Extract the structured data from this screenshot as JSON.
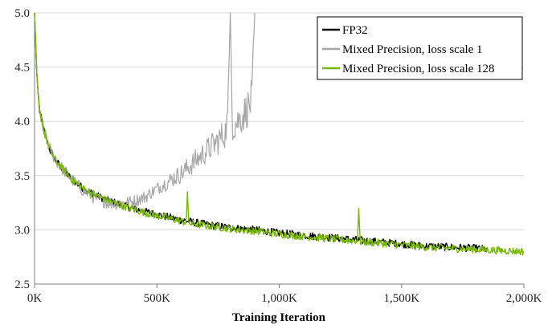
{
  "chart_data": {
    "type": "line",
    "title": "",
    "xlabel": "Training Iteration",
    "ylabel": "",
    "xlim": [
      0,
      2000000
    ],
    "ylim": [
      2.5,
      5.0
    ],
    "x_ticks": [
      0,
      500000,
      1000000,
      1500000,
      2000000
    ],
    "x_tick_labels": [
      "0K",
      "500K",
      "1,000K",
      "1,500K",
      "2,000K"
    ],
    "y_ticks": [
      2.5,
      3.0,
      3.5,
      4.0,
      4.5,
      5.0
    ],
    "y_tick_labels": [
      "2.5",
      "3.0",
      "3.5",
      "4.0",
      "4.5",
      "5.0"
    ],
    "grid": "horizontal",
    "legend_position": "top-right",
    "series": [
      {
        "name": "FP32",
        "color": "#000000",
        "x": [
          0,
          10000,
          20000,
          40000,
          60000,
          80000,
          100000,
          150000,
          200000,
          250000,
          300000,
          400000,
          500000,
          600000,
          700000,
          800000,
          900000,
          1000000,
          1100000,
          1200000,
          1300000,
          1400000,
          1500000,
          1600000,
          1700000,
          1800000,
          1850000
        ],
        "y": [
          5.0,
          4.4,
          4.1,
          3.9,
          3.75,
          3.66,
          3.6,
          3.47,
          3.38,
          3.32,
          3.27,
          3.2,
          3.14,
          3.09,
          3.05,
          3.02,
          3.0,
          2.97,
          2.95,
          2.93,
          2.91,
          2.89,
          2.87,
          2.85,
          2.84,
          2.83,
          2.82
        ]
      },
      {
        "name": "Mixed Precision, loss scale 1",
        "color": "#a6a6a6",
        "x": [
          0,
          10000,
          20000,
          40000,
          60000,
          80000,
          100000,
          150000,
          200000,
          250000,
          300000,
          350000,
          400000,
          450000,
          500000,
          550000,
          600000,
          650000,
          700000,
          750000,
          780000,
          790000,
          800000,
          810000,
          850000,
          880000,
          890000,
          900000
        ],
        "y": [
          5.0,
          4.4,
          4.1,
          3.9,
          3.76,
          3.67,
          3.6,
          3.47,
          3.36,
          3.29,
          3.25,
          3.24,
          3.26,
          3.3,
          3.38,
          3.45,
          3.52,
          3.62,
          3.72,
          3.82,
          3.9,
          4.05,
          5.0,
          3.95,
          4.05,
          4.15,
          4.25,
          5.0
        ]
      },
      {
        "name": "Mixed Precision, loss scale 128",
        "color": "#76b900",
        "x": [
          0,
          10000,
          20000,
          40000,
          60000,
          80000,
          100000,
          150000,
          200000,
          250000,
          300000,
          400000,
          500000,
          600000,
          620000,
          625000,
          630000,
          700000,
          800000,
          900000,
          1000000,
          1100000,
          1200000,
          1300000,
          1320000,
          1325000,
          1330000,
          1400000,
          1500000,
          1600000,
          1700000,
          1800000,
          1900000,
          2000000
        ],
        "y": [
          5.0,
          4.4,
          4.1,
          3.9,
          3.75,
          3.66,
          3.6,
          3.47,
          3.38,
          3.32,
          3.27,
          3.19,
          3.13,
          3.08,
          3.07,
          3.35,
          3.06,
          3.04,
          3.01,
          2.99,
          2.96,
          2.94,
          2.92,
          2.9,
          2.9,
          3.2,
          2.89,
          2.88,
          2.86,
          2.84,
          2.83,
          2.82,
          2.81,
          2.8
        ]
      }
    ]
  }
}
